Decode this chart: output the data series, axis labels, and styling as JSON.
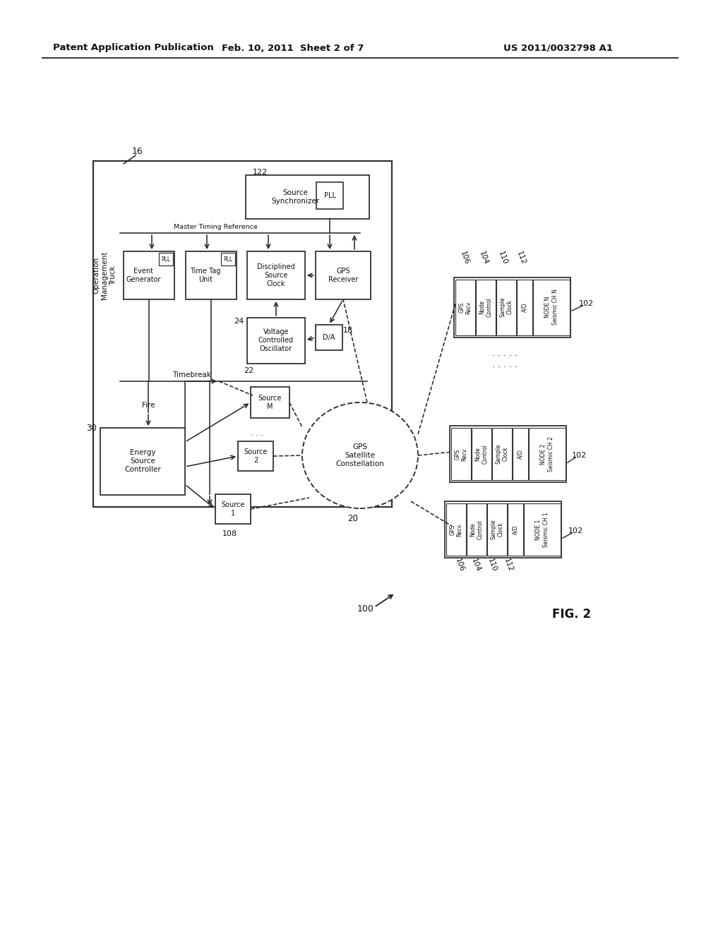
{
  "bg_color": "#ffffff",
  "header_text": "Patent Application Publication",
  "header_date": "Feb. 10, 2011  Sheet 2 of 7",
  "header_patent": "US 2011/0032798 A1",
  "fig_label": "FIG. 2",
  "fig_number": "100"
}
